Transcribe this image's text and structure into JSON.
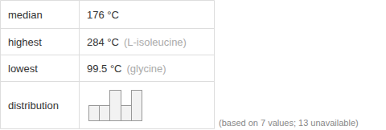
{
  "table": {
    "rows": [
      {
        "label": "median",
        "value": "176 °C"
      },
      {
        "label": "highest",
        "value": "284 °C",
        "note": "(L-isoleucine)"
      },
      {
        "label": "lowest",
        "value": "99.5 °C",
        "note": "(glycine)"
      },
      {
        "label": "distribution"
      }
    ]
  },
  "footnote": "(based on 7 values; 13 unavailable)",
  "chart_data": {
    "type": "histogram",
    "bins": [
      50,
      100,
      150,
      200,
      250,
      300
    ],
    "values": [
      1,
      1,
      2,
      1,
      2
    ],
    "xlim": [
      50,
      300
    ],
    "ylim": [
      0,
      2
    ],
    "color": "#f2f2f2",
    "tick_labels": false,
    "grid": false
  }
}
